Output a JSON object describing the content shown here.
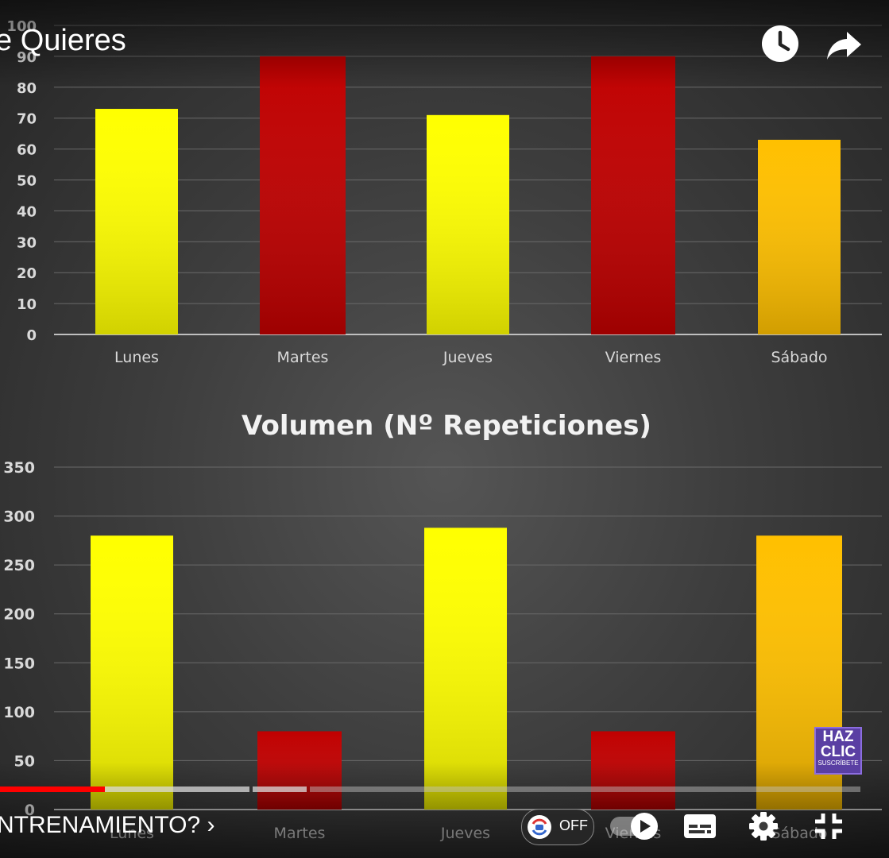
{
  "video": {
    "title_fragment": "e Quieres",
    "chapter_title": "NTRENAMIENTO? ›",
    "progress": {
      "played_fraction": 0.118
    },
    "icons": {
      "watch_later": "clock-icon",
      "share": "share-arrow-icon",
      "settings": "gear-icon",
      "subtitles": "subtitles-icon",
      "exit_fullscreen": "exit-fullscreen-icon",
      "autoplay": "play-icon"
    },
    "pill_label": "OFF",
    "badge": {
      "line1": "HAZ",
      "line2": "CLIC",
      "line3": "SUSCRÍBETE"
    }
  },
  "chart_data": [
    {
      "type": "bar",
      "title": "",
      "categories": [
        "Lunes",
        "Martes",
        "Jueves",
        "Viernes",
        "Sábado"
      ],
      "values": [
        73,
        90,
        71,
        90,
        63
      ],
      "colors": [
        "#ffff00",
        "#c00000",
        "#ffff00",
        "#c00000",
        "#ffc000"
      ],
      "ylim": [
        0,
        100
      ],
      "yticks": [
        "0",
        "10",
        "20",
        "30",
        "40",
        "50",
        "60",
        "70",
        "80",
        "90",
        "100"
      ],
      "grid": true
    },
    {
      "type": "bar",
      "title": "Volumen (Nº Repeticiones)",
      "categories": [
        "Lunes",
        "Martes",
        "Jueves",
        "Viernes",
        "Sábado"
      ],
      "values": [
        280,
        80,
        288,
        80,
        280
      ],
      "colors": [
        "#ffff00",
        "#c00000",
        "#ffff00",
        "#c00000",
        "#ffc000"
      ],
      "ylim": [
        0,
        350
      ],
      "yticks": [
        "0",
        "50",
        "100",
        "150",
        "200",
        "250",
        "300",
        "350"
      ],
      "grid": true
    }
  ]
}
